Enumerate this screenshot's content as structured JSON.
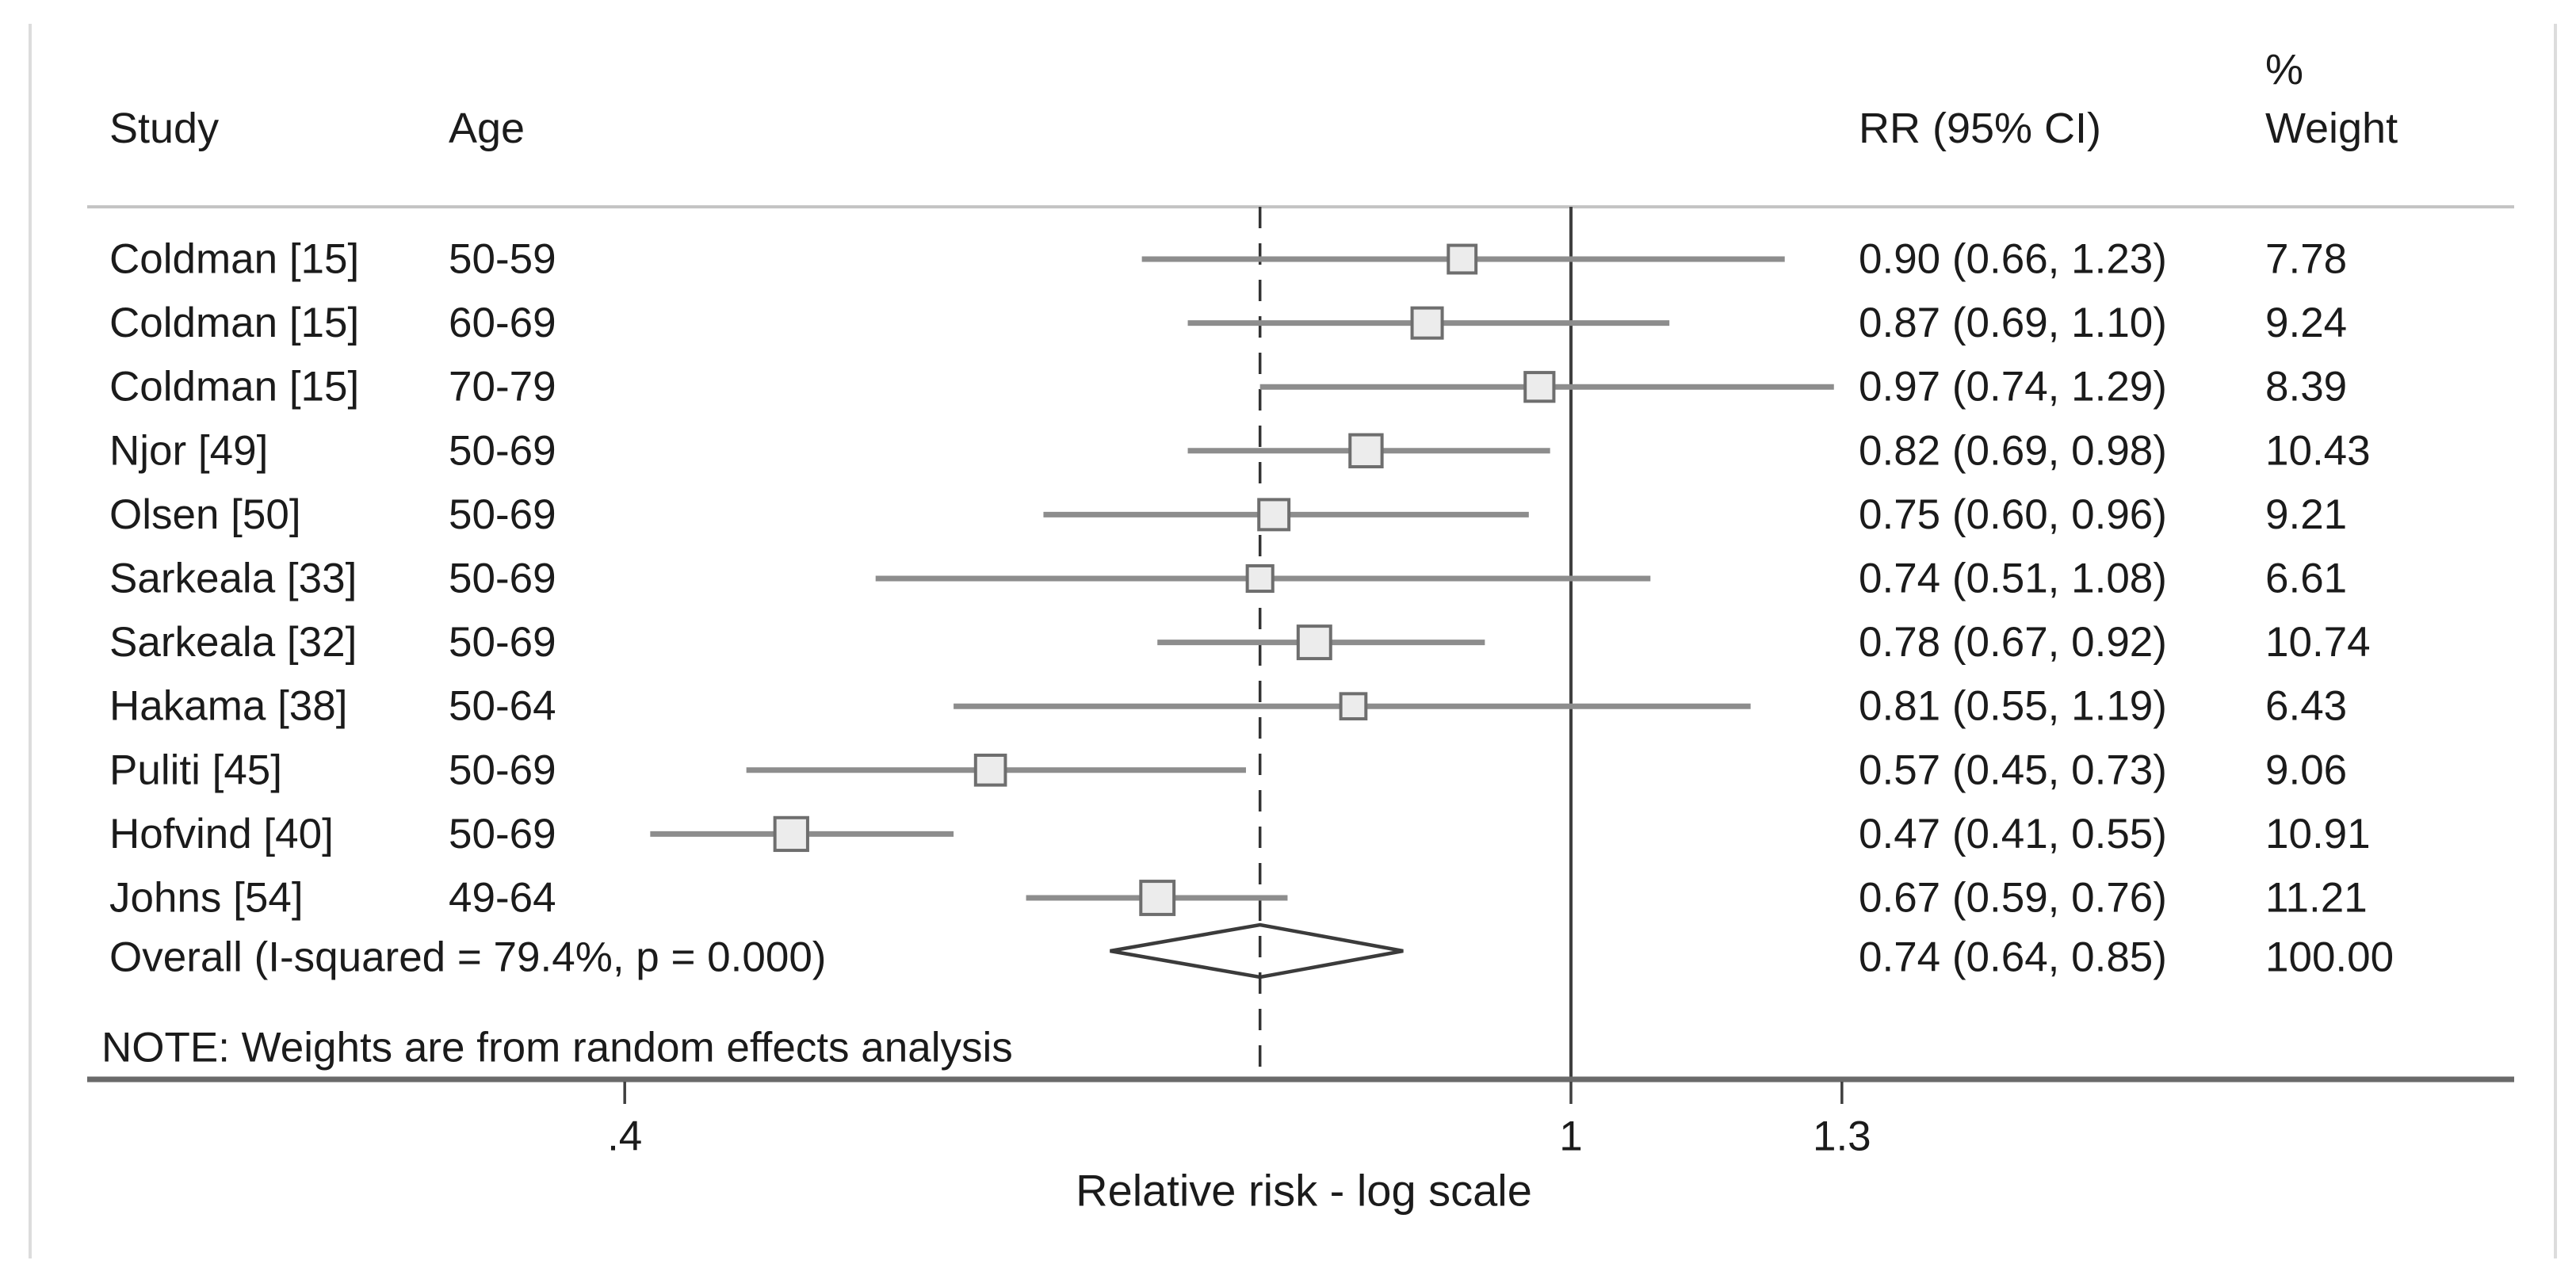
{
  "palette": {
    "background": "#ffffff",
    "text": "#1b1b1b",
    "ci_line": "#8d8d8d",
    "marker_fill": "#ececec",
    "marker_stroke": "#6e6e6e",
    "reference_line": "#3f3f3f",
    "dashed_line": "#333333",
    "axis_line": "#6a6a6a",
    "separator": "#c4c4c4",
    "edge_border": "#dcdcdc",
    "diamond_stroke": "#3b3b3b",
    "diamond_fill": "#ffffff"
  },
  "header": {
    "percent": "%",
    "weight": "Weight",
    "study": "Study",
    "age": "Age",
    "rr": "RR (95% CI)"
  },
  "chart_data": {
    "type": "forest",
    "x_scale": "log10",
    "xlabel": "Relative risk - log scale",
    "x_ticks": [
      {
        "value": 0.4,
        "label": ".4"
      },
      {
        "value": 1,
        "label": "1"
      },
      {
        "value": 1.3,
        "label": "1.3"
      }
    ],
    "reference_line_at": 1,
    "dashed_line_at": 0.74,
    "note": "NOTE: Weights are from random effects analysis",
    "studies": [
      {
        "study": "Coldman [15]",
        "age": "50-59",
        "rr": 0.9,
        "lo": 0.66,
        "hi": 1.23,
        "rr_label": "0.90 (0.66, 1.23)",
        "weight": 7.78,
        "weight_label": "7.78"
      },
      {
        "study": "Coldman [15]",
        "age": "60-69",
        "rr": 0.87,
        "lo": 0.69,
        "hi": 1.1,
        "rr_label": "0.87 (0.69, 1.10)",
        "weight": 9.24,
        "weight_label": "9.24"
      },
      {
        "study": "Coldman [15]",
        "age": "70-79",
        "rr": 0.97,
        "lo": 0.74,
        "hi": 1.29,
        "rr_label": "0.97 (0.74, 1.29)",
        "weight": 8.39,
        "weight_label": "8.39"
      },
      {
        "study": "Njor [49]",
        "age": "50-69",
        "rr": 0.82,
        "lo": 0.69,
        "hi": 0.98,
        "rr_label": "0.82 (0.69, 0.98)",
        "weight": 10.43,
        "weight_label": "10.43"
      },
      {
        "study": "Olsen [50]",
        "age": "50-69",
        "rr": 0.75,
        "lo": 0.6,
        "hi": 0.96,
        "rr_label": "0.75 (0.60, 0.96)",
        "weight": 9.21,
        "weight_label": "9.21"
      },
      {
        "study": "Sarkeala [33]",
        "age": "50-69",
        "rr": 0.74,
        "lo": 0.51,
        "hi": 1.08,
        "rr_label": "0.74 (0.51, 1.08)",
        "weight": 6.61,
        "weight_label": "6.61"
      },
      {
        "study": "Sarkeala [32]",
        "age": "50-69",
        "rr": 0.78,
        "lo": 0.67,
        "hi": 0.92,
        "rr_label": "0.78 (0.67, 0.92)",
        "weight": 10.74,
        "weight_label": "10.74"
      },
      {
        "study": "Hakama [38]",
        "age": "50-64",
        "rr": 0.81,
        "lo": 0.55,
        "hi": 1.19,
        "rr_label": "0.81 (0.55, 1.19)",
        "weight": 6.43,
        "weight_label": "6.43"
      },
      {
        "study": "Puliti [45]",
        "age": "50-69",
        "rr": 0.57,
        "lo": 0.45,
        "hi": 0.73,
        "rr_label": "0.57 (0.45, 0.73)",
        "weight": 9.06,
        "weight_label": "9.06"
      },
      {
        "study": "Hofvind [40]",
        "age": "50-69",
        "rr": 0.47,
        "lo": 0.41,
        "hi": 0.55,
        "rr_label": "0.47 (0.41, 0.55)",
        "weight": 10.91,
        "weight_label": "10.91"
      },
      {
        "study": "Johns [54]",
        "age": "49-64",
        "rr": 0.67,
        "lo": 0.59,
        "hi": 0.76,
        "rr_label": "0.67 (0.59, 0.76)",
        "weight": 11.21,
        "weight_label": "11.21"
      }
    ],
    "overall": {
      "label": "Overall  (I-squared = 79.4%, p = 0.000)",
      "rr": 0.74,
      "lo": 0.64,
      "hi": 0.85,
      "rr_label": "0.74 (0.64, 0.85)",
      "weight_label": "100.00"
    }
  }
}
